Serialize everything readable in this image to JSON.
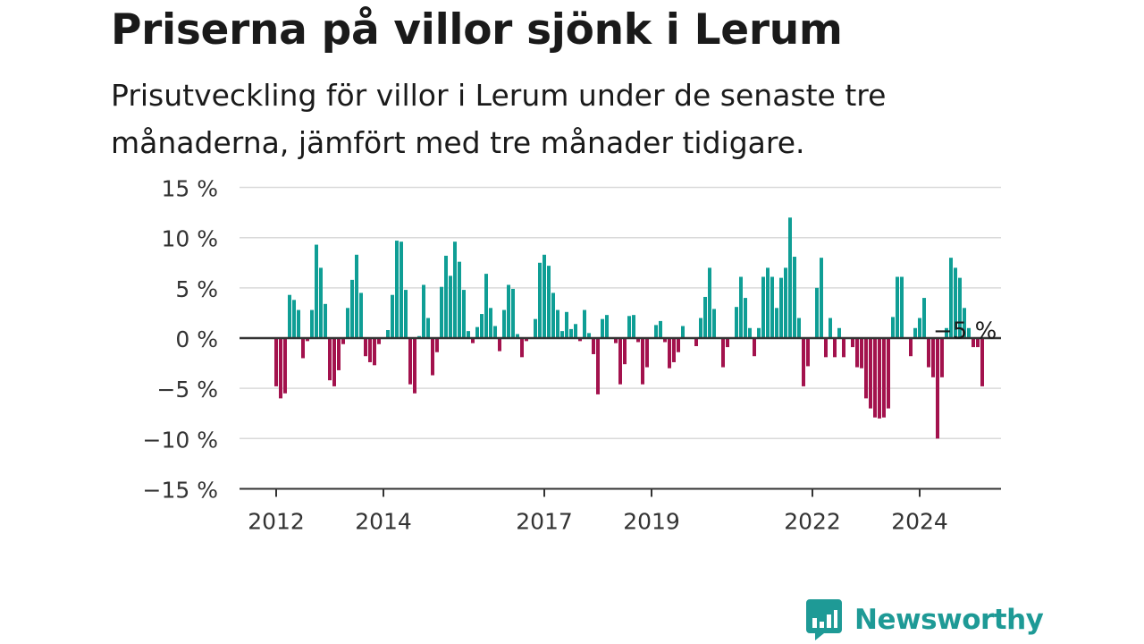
{
  "title": "Priserna på villor sjönk i Lerum",
  "subtitle": "Prisutveckling för villor i Lerum under de senaste tre månaderna, jämfört med tre månader tidigare.",
  "brand": {
    "name": "Newsworthy",
    "icon": "newsworthy-chart-bubble-icon"
  },
  "colors": {
    "positive": "#0f9e95",
    "negative": "#a3124d",
    "grid": "#d9d9d9",
    "axis": "#333333",
    "brand": "#1e9a96"
  },
  "chart_data": {
    "type": "bar",
    "y_unit": "%",
    "ylim": [
      -15,
      15
    ],
    "y_ticks": [
      15,
      10,
      5,
      0,
      -5,
      -10,
      -15
    ],
    "y_tick_labels": [
      "15 %",
      "10 %",
      "5 %",
      "0 %",
      "−5 %",
      "−10 %",
      "−15 %"
    ],
    "x_tick_labels": [
      "2012",
      "2014",
      "2017",
      "2019",
      "2022",
      "2024"
    ],
    "x_tick_months": [
      0,
      24,
      60,
      84,
      120,
      144
    ],
    "start": "2012-01",
    "grid": true,
    "annotation": {
      "label": "−5 %",
      "month": 154
    },
    "values": [
      -4.8,
      -6.0,
      -5.5,
      4.3,
      3.8,
      2.8,
      -2.0,
      -0.3,
      2.8,
      9.3,
      7.0,
      3.4,
      -4.2,
      -4.8,
      -3.2,
      -0.6,
      3.0,
      5.8,
      8.3,
      4.5,
      -1.8,
      -2.4,
      -2.7,
      -0.6,
      0,
      0.8,
      4.3,
      9.7,
      9.6,
      4.8,
      -4.6,
      -5.5,
      0.2,
      5.3,
      2.0,
      -3.7,
      -1.4,
      5.1,
      8.2,
      6.2,
      9.6,
      7.6,
      4.8,
      0.7,
      -0.5,
      1.1,
      2.4,
      6.4,
      3.0,
      1.2,
      -1.3,
      2.8,
      5.3,
      4.9,
      0.4,
      -1.9,
      -0.3,
      0,
      1.9,
      7.5,
      8.3,
      7.2,
      4.5,
      2.8,
      0.7,
      2.6,
      0.9,
      1.4,
      -0.3,
      2.8,
      0.5,
      -1.6,
      -5.6,
      1.9,
      2.3,
      0,
      -0.5,
      -4.6,
      -2.6,
      2.2,
      2.3,
      -0.4,
      -4.6,
      -2.9,
      0,
      1.3,
      1.7,
      -0.4,
      -3.0,
      -2.4,
      -1.4,
      1.2,
      0,
      0,
      -0.8,
      2.0,
      4.1,
      7.0,
      2.9,
      0,
      -2.9,
      -0.9,
      0,
      3.1,
      6.1,
      4.0,
      1.0,
      -1.8,
      1.0,
      6.1,
      7.0,
      6.1,
      3.0,
      6.0,
      7.0,
      12.0,
      8.1,
      2.0,
      -4.8,
      -2.8,
      0,
      5.0,
      8.0,
      -1.9,
      2.0,
      -1.9,
      1.0,
      -1.9,
      0,
      -0.9,
      -2.9,
      -3.0,
      -6.0,
      -7.0,
      -7.9,
      -8.0,
      -7.9,
      -7.0,
      2.1,
      6.1,
      6.1,
      0,
      -1.8,
      1.0,
      2.0,
      4.0,
      -2.9,
      -3.9,
      -10.0,
      -3.9,
      1.0,
      8.0,
      7.0,
      6.0,
      3.0,
      1.0,
      -0.9,
      -0.9,
      -4.8
    ]
  }
}
